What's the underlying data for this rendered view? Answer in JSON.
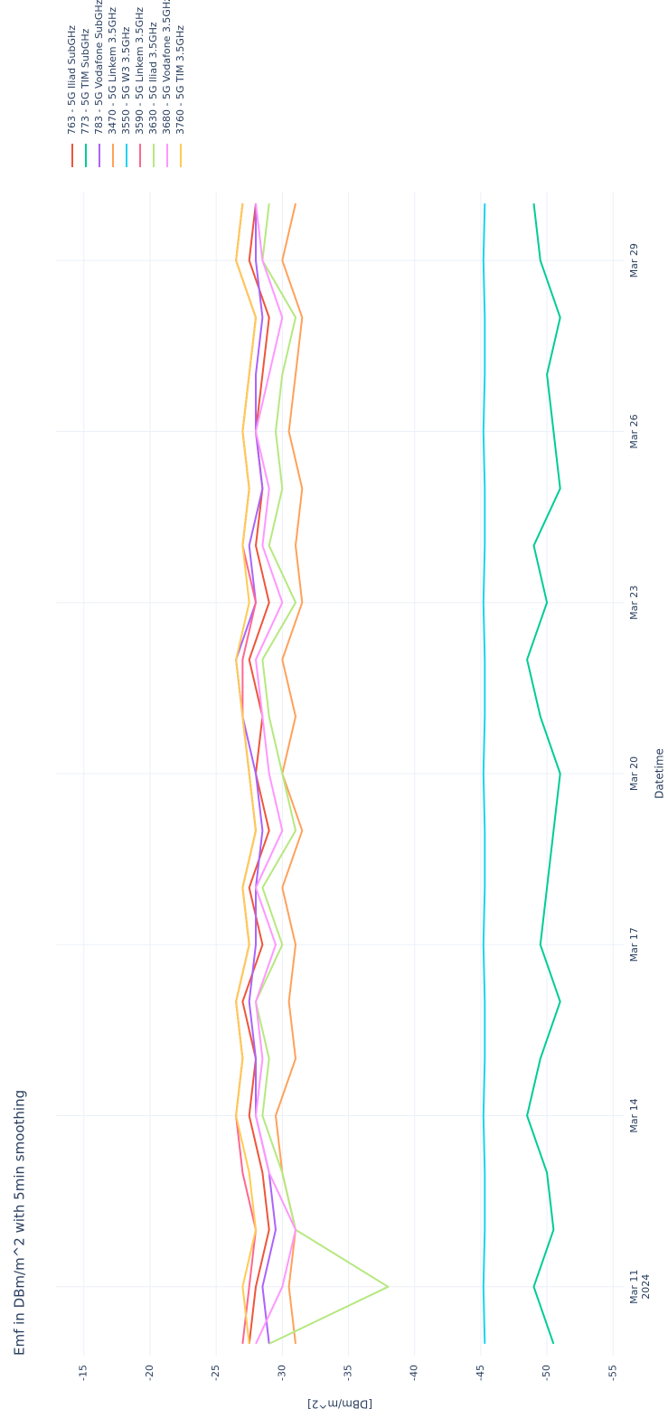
{
  "chart_data": {
    "type": "line",
    "title": "Emf in DBm/m^2 with 5min smoothing",
    "xlabel": "Datetime",
    "ylabel": "[DBm/m^2]",
    "x": [
      "2024-03-10",
      "2024-03-11",
      "2024-03-12",
      "2024-03-13",
      "2024-03-14",
      "2024-03-15",
      "2024-03-16",
      "2024-03-17",
      "2024-03-18",
      "2024-03-19",
      "2024-03-20",
      "2024-03-21",
      "2024-03-22",
      "2024-03-23",
      "2024-03-24",
      "2024-03-25",
      "2024-03-26",
      "2024-03-27",
      "2024-03-28",
      "2024-03-29",
      "2024-03-30"
    ],
    "series": [
      {
        "name": "763 - 5G Iliad SubGHz",
        "color": "#EF553B",
        "values": [
          -27.5,
          -28,
          -29,
          -28.5,
          -27.5,
          -28,
          -27,
          -28.5,
          -27.5,
          -29,
          -28,
          -28.5,
          -27.5,
          -29,
          -28,
          -28.5,
          -28,
          -28.5,
          -29,
          -27.5,
          -28
        ]
      },
      {
        "name": "773 - 5G TIM SubGHz",
        "color": "#00CC96",
        "values": [
          -50.5,
          -49,
          -50.5,
          -50,
          -48.5,
          -49.5,
          -51,
          -49.5,
          -50,
          -50.5,
          -51,
          -49.5,
          -48.5,
          -50,
          -49,
          -51,
          -50.5,
          -50,
          -51,
          -49.5,
          -49
        ]
      },
      {
        "name": "783 - 5G Vodafone SubGHz",
        "color": "#AB63FA",
        "values": [
          -29,
          -28.5,
          -29.5,
          -29,
          -28,
          -28,
          -27.5,
          -28,
          -28,
          -28.5,
          -28,
          -27,
          -26.5,
          -28,
          -27.5,
          -28.5,
          -28,
          -28,
          -28.5,
          -28,
          -28
        ]
      },
      {
        "name": "3470 - 5G Linkem 3.5GHz",
        "color": "#FFA15A",
        "values": [
          -31,
          -30.5,
          -31,
          -30,
          -29.5,
          -31,
          -30.5,
          -31,
          -30,
          -31.5,
          -30,
          -31,
          -30,
          -31.5,
          -31,
          -31.5,
          -30.5,
          -31,
          -31.5,
          -30,
          -31
        ]
      },
      {
        "name": "3550 - 5G W3 3.5GHz",
        "color": "#19D3F3",
        "values": [
          -45.3,
          -45.2,
          -45.3,
          -45.3,
          -45.2,
          -45.3,
          -45.3,
          -45.2,
          -45.3,
          -45.3,
          -45.2,
          -45.3,
          -45.3,
          -45.2,
          -45.3,
          -45.3,
          -45.2,
          -45.3,
          -45.3,
          -45.2,
          -45.3
        ]
      },
      {
        "name": "3590 - 5G Linkem 3.5GHz",
        "color": "#FF6692",
        "values": [
          -27,
          -27.5,
          -28,
          -27,
          -26.5,
          -27,
          -26.5,
          -27.5,
          -27,
          -28,
          -27.5,
          -27,
          -27,
          -28,
          -27,
          -27.5,
          -27,
          -27.5,
          -28,
          -26.5,
          -27
        ]
      },
      {
        "name": "3630 - 5G Iliad 3.5GHz",
        "color": "#B6E880",
        "values": [
          -29,
          -38,
          -31,
          -30,
          -28.5,
          -29,
          -28,
          -30,
          -28.5,
          -31,
          -30,
          -29,
          -28.5,
          -31,
          -29,
          -30,
          -29.5,
          -30,
          -31,
          -28.5,
          -29
        ]
      },
      {
        "name": "3680 - 5G Vodafone 3.5GHz",
        "color": "#FF97FF",
        "values": [
          -28,
          -30,
          -31,
          -29,
          -28,
          -28.5,
          -28,
          -29.5,
          -28,
          -30,
          -29,
          -28.5,
          -28,
          -30,
          -28.5,
          -29,
          -28,
          -29,
          -30,
          -28.5,
          -28
        ]
      },
      {
        "name": "3760 - 5G TIM 3.5GHz",
        "color": "#FECB52",
        "values": [
          -27.5,
          -27,
          -28,
          -27.5,
          -26.5,
          -27,
          -26.5,
          -27.5,
          -27,
          -28,
          -27.5,
          -27,
          -26.5,
          -27.5,
          -27,
          -27.5,
          -27,
          -27.5,
          -28,
          -26.5,
          -27
        ]
      }
    ],
    "xlim": [
      "2024-03-09T19:00",
      "2024-03-30T05:00"
    ],
    "xticks": [
      {
        "value": "2024-03-11",
        "label": "Mar 11\n2024"
      },
      {
        "value": "2024-03-14",
        "label": "Mar 14"
      },
      {
        "value": "2024-03-17",
        "label": "Mar 17"
      },
      {
        "value": "2024-03-20",
        "label": "Mar 20"
      },
      {
        "value": "2024-03-23",
        "label": "Mar 23"
      },
      {
        "value": "2024-03-26",
        "label": "Mar 26"
      },
      {
        "value": "2024-03-29",
        "label": "Mar 29"
      }
    ],
    "ylim": [
      -55.8,
      -12.9
    ],
    "yticks": [
      -15,
      -20,
      -25,
      -30,
      -35,
      -40,
      -45,
      -50,
      -55
    ],
    "grid": true,
    "legend": "right"
  }
}
